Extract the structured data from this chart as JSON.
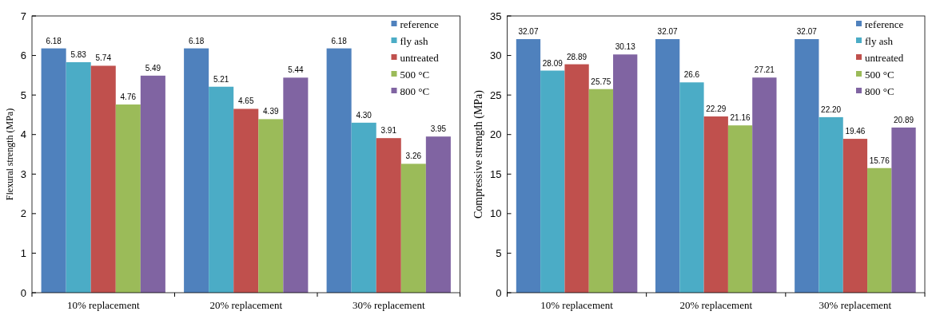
{
  "chart_data": [
    {
      "type": "bar",
      "ylabel": "Flexural strength (MPa)",
      "categories": [
        "10% replacement",
        "20% replacement",
        "30% replacement"
      ],
      "ylim": [
        0,
        7
      ],
      "yticks": [
        0,
        1,
        2,
        3,
        4,
        5,
        6,
        7
      ],
      "legend": "top right",
      "series": [
        {
          "name": "reference",
          "color": "#4f81bd",
          "values": [
            6.18,
            6.18,
            6.18
          ],
          "value_labels": [
            "6.18",
            "6.18",
            "6.18"
          ]
        },
        {
          "name": "fly ash",
          "color": "#4bacc6",
          "values": [
            5.83,
            5.21,
            4.3
          ],
          "value_labels": [
            "5.83",
            "5.21",
            "4.30"
          ]
        },
        {
          "name": "untreated",
          "color": "#c0504d",
          "values": [
            5.74,
            4.65,
            3.91
          ],
          "value_labels": [
            "5.74",
            "4.65",
            "3.91"
          ]
        },
        {
          "name": "500 °C",
          "color": "#9bbb59",
          "values": [
            4.76,
            4.39,
            3.26
          ],
          "value_labels": [
            "4.76",
            "4.39",
            "3.26"
          ]
        },
        {
          "name": "800 °C",
          "color": "#8064a2",
          "values": [
            5.49,
            5.44,
            3.95
          ],
          "value_labels": [
            "5.49",
            "5.44",
            "3.95"
          ]
        }
      ]
    },
    {
      "type": "bar",
      "ylabel": "Compressive strength (MPa)",
      "categories": [
        "10% replacement",
        "20% replacement",
        "30% replacement"
      ],
      "ylim": [
        0,
        35
      ],
      "yticks": [
        0,
        5,
        10,
        15,
        20,
        25,
        30,
        35
      ],
      "legend": "top right",
      "series": [
        {
          "name": "reference",
          "color": "#4f81bd",
          "values": [
            32.07,
            32.07,
            32.07
          ],
          "value_labels": [
            "32.07",
            "32.07",
            "32.07"
          ]
        },
        {
          "name": "fly ash",
          "color": "#4bacc6",
          "values": [
            28.09,
            26.6,
            22.2
          ],
          "value_labels": [
            "28.09",
            "26.6",
            "22.20"
          ]
        },
        {
          "name": "untreated",
          "color": "#c0504d",
          "values": [
            28.89,
            22.29,
            19.46
          ],
          "value_labels": [
            "28.89",
            "22.29",
            "19.46"
          ]
        },
        {
          "name": "500 °C",
          "color": "#9bbb59",
          "values": [
            25.75,
            21.16,
            15.76
          ],
          "value_labels": [
            "25.75",
            "21.16",
            "15.76"
          ]
        },
        {
          "name": "800 °C",
          "color": "#8064a2",
          "values": [
            30.13,
            27.21,
            20.89
          ],
          "value_labels": [
            "30.13",
            "27.21",
            "20.89"
          ]
        }
      ]
    }
  ]
}
